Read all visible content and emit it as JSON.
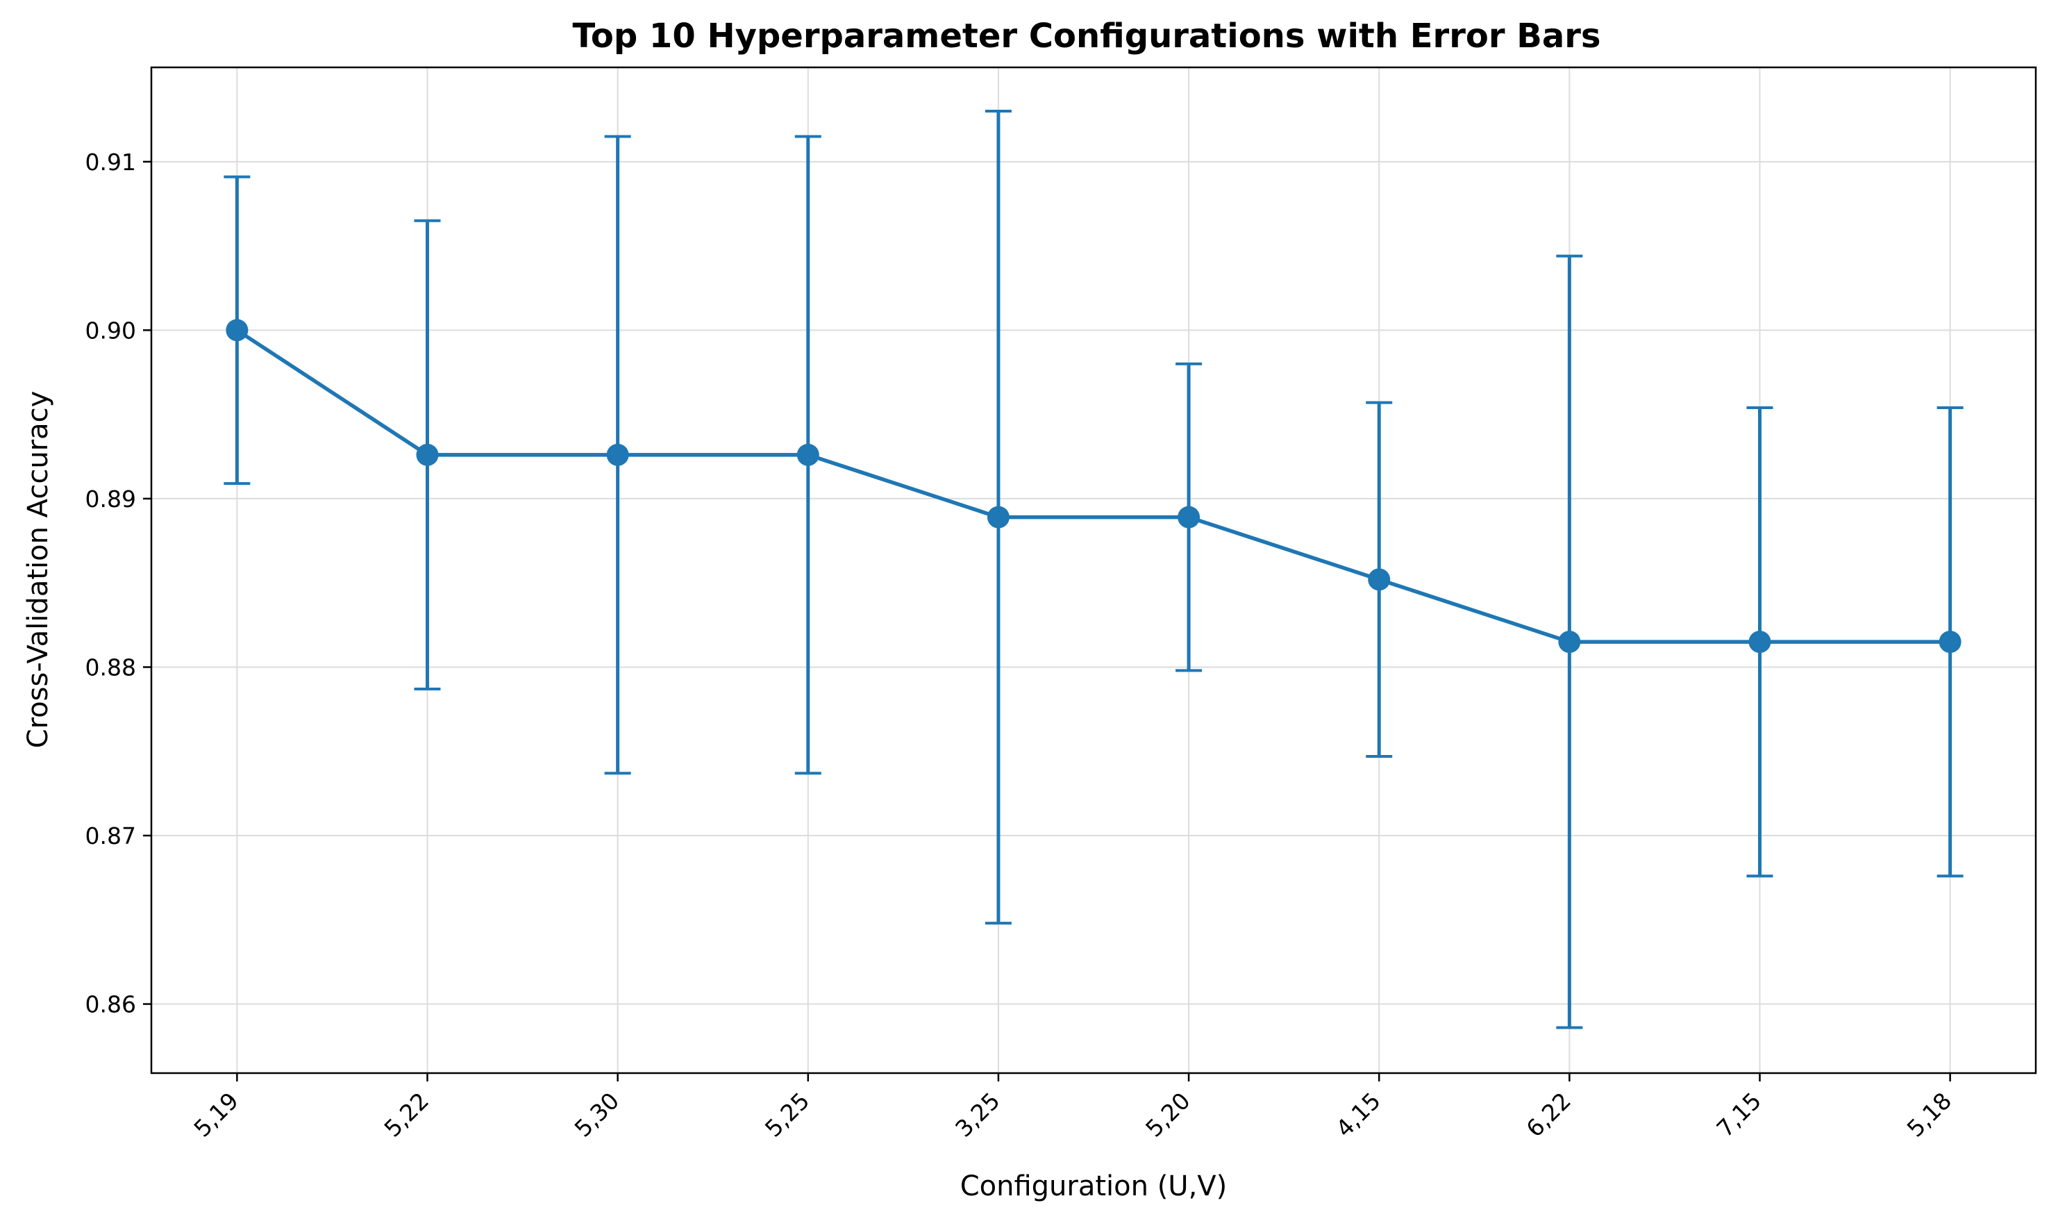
{
  "chart_data": {
    "type": "line",
    "title": "Top 10 Hyperparameter Configurations with Error Bars",
    "xlabel": "Configuration (U,V)",
    "ylabel": "Cross-Validation Accuracy",
    "categories": [
      "5,19",
      "5,22",
      "5,30",
      "5,25",
      "3,25",
      "5,20",
      "4,15",
      "6,22",
      "7,15",
      "5,18"
    ],
    "series": [
      {
        "values": [
          0.9,
          0.8926,
          0.8926,
          0.8926,
          0.8889,
          0.8889,
          0.8852,
          0.8815,
          0.8815,
          0.8815
        ],
        "errors": [
          0.0091,
          0.0139,
          0.0189,
          0.0189,
          0.0241,
          0.0091,
          0.0105,
          0.0229,
          0.0139,
          0.0139
        ]
      }
    ],
    "ylim": [
      0.8559,
      0.9156
    ],
    "yticks": [
      0.86,
      0.87,
      0.88,
      0.89,
      0.9,
      0.91
    ],
    "ytick_labels": [
      "0.86",
      "0.87",
      "0.88",
      "0.89",
      "0.90",
      "0.91"
    ],
    "grid": true,
    "marker": "circle",
    "error_bars": true,
    "colors": {
      "series": "#1f77b4",
      "grid": "#dcdcdc",
      "axes": "#000000"
    }
  }
}
